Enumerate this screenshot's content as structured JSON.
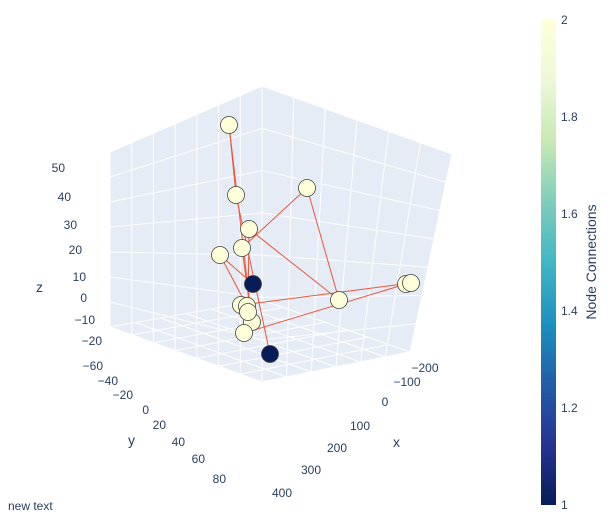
{
  "chart_data": {
    "type": "scatter3d-network",
    "annotation": "new text",
    "axes": {
      "x": {
        "title": "x",
        "range": [
          -200,
          400
        ],
        "ticks": [
          -200,
          -100,
          0,
          100,
          200,
          300,
          400
        ]
      },
      "y": {
        "title": "y",
        "range": [
          -60,
          80
        ],
        "ticks": [
          -60,
          -40,
          -20,
          0,
          20,
          40,
          60,
          80
        ]
      },
      "z": {
        "title": "z",
        "range": [
          -20,
          50
        ],
        "ticks": [
          -20,
          -10,
          0,
          10,
          20,
          30,
          40,
          50
        ]
      }
    },
    "colorbar": {
      "title": "Node Connections",
      "range": [
        1,
        2
      ],
      "ticks": [
        1,
        1.2,
        1.4,
        1.6,
        1.8,
        2
      ],
      "tick_labels": [
        "1",
        "1.2",
        "1.4",
        "1.6",
        "1.8",
        "2"
      ],
      "colorscale": "YlGnBu",
      "colors": [
        "#081d58",
        "#253494",
        "#225ea8",
        "#1d91c0",
        "#41b6c4",
        "#7fcdbb",
        "#c7e9b4",
        "#edf8d9",
        "#ffffd9"
      ]
    },
    "edge_color": "#ef553b",
    "grid": true,
    "nodes": [
      {
        "id": "n1",
        "connections": 2
      },
      {
        "id": "n2",
        "connections": 2
      },
      {
        "id": "n3",
        "connections": 2
      },
      {
        "id": "n4",
        "connections": 2
      },
      {
        "id": "n5",
        "connections": 2
      },
      {
        "id": "n6",
        "connections": 1
      },
      {
        "id": "n7",
        "connections": 2
      },
      {
        "id": "n8",
        "connections": 2
      },
      {
        "id": "n9",
        "connections": 2
      },
      {
        "id": "n10",
        "connections": 2
      },
      {
        "id": "n11",
        "connections": 2
      },
      {
        "id": "n12",
        "connections": 2
      },
      {
        "id": "n13",
        "connections": 2
      },
      {
        "id": "n14",
        "connections": 1
      },
      {
        "id": "n15",
        "connections": 2
      },
      {
        "id": "n16",
        "connections": 2
      }
    ],
    "edges": [
      [
        "n1",
        "n2"
      ],
      [
        "n1",
        "n13"
      ],
      [
        "n3",
        "n10"
      ],
      [
        "n4",
        "n10"
      ],
      [
        "n5",
        "n13"
      ],
      [
        "n7",
        "n6"
      ],
      [
        "n7",
        "n12"
      ],
      [
        "n9",
        "n8"
      ],
      [
        "n9",
        "n11"
      ],
      [
        "n2",
        "n14"
      ],
      [
        "n11",
        "n16"
      ],
      [
        "n15",
        "n8"
      ],
      [
        "n16",
        "n4"
      ],
      [
        "n12",
        "n15"
      ],
      [
        "n3",
        "n5"
      ]
    ]
  }
}
